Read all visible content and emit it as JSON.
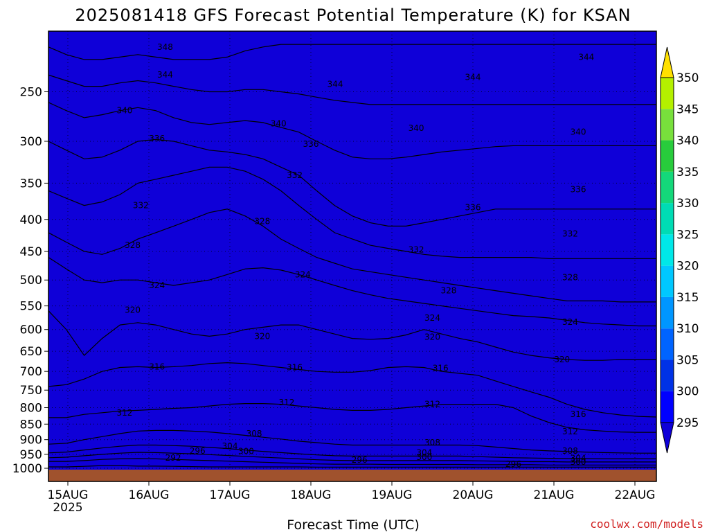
{
  "chart_data": {
    "type": "heatmap",
    "title": "2025081418 GFS Forecast Potential Temperature (K) for KSAN",
    "xlabel": "Forecast Time (UTC)",
    "ylabel": "",
    "credit": "coolwx.com/models",
    "units": "K",
    "x_start_date": "15AUG",
    "x_year_label": "2025",
    "x_ticks": [
      "15AUG",
      "16AUG",
      "17AUG",
      "18AUG",
      "19AUG",
      "20AUG",
      "21AUG",
      "22AUG"
    ],
    "y_ticks": [
      250,
      300,
      350,
      400,
      450,
      500,
      550,
      600,
      650,
      700,
      750,
      800,
      850,
      900,
      950,
      1000
    ],
    "y_range": [
      200,
      1000
    ],
    "y_scale": "log (pressure, hPa), inverted",
    "colorbar_levels": [
      295,
      300,
      305,
      310,
      315,
      320,
      325,
      330,
      335,
      340,
      345,
      350
    ],
    "colorbar_colors": [
      "#0f00d8",
      "#0000ff",
      "#0032e6",
      "#0064ff",
      "#0096ff",
      "#00c8ff",
      "#00e8e8",
      "#00dcb4",
      "#14d87a",
      "#28cc3c",
      "#78e03c",
      "#b4f000",
      "#f0ff00",
      "#ffe000"
    ],
    "grid": true,
    "contour_lines": [
      {
        "value": 292,
        "p": [
          995,
          995,
          993,
          990,
          990,
          992,
          992,
          993,
          994,
          995,
          995,
          995,
          995,
          995,
          995,
          996,
          996,
          996,
          996,
          996,
          996,
          996,
          996,
          996,
          996,
          996,
          996,
          996,
          996,
          996,
          996,
          996,
          996,
          996,
          996
        ]
      },
      {
        "value": 296,
        "p": [
          975,
          975,
          972,
          968,
          966,
          965,
          966,
          968,
          970,
          972,
          974,
          976,
          978,
          980,
          982,
          984,
          985,
          985,
          985,
          986,
          986,
          986,
          986,
          986,
          987,
          987,
          987,
          987,
          988,
          988,
          988,
          988,
          988,
          988,
          988
        ]
      },
      {
        "value": 300,
        "p": [
          962,
          960,
          955,
          950,
          946,
          943,
          944,
          946,
          948,
          951,
          954,
          957,
          960,
          963,
          966,
          969,
          971,
          972,
          972,
          972,
          972,
          972,
          972,
          972,
          973,
          974,
          975,
          976,
          976,
          977,
          977,
          977,
          977,
          977,
          977
        ]
      },
      {
        "value": 304,
        "p": [
          945,
          942,
          935,
          928,
          922,
          918,
          918,
          920,
          922,
          926,
          930,
          935,
          940,
          944,
          948,
          952,
          955,
          956,
          956,
          956,
          956,
          956,
          956,
          956,
          958,
          960,
          962,
          963,
          964,
          965,
          965,
          966,
          966,
          966,
          966
        ]
      },
      {
        "value": 308,
        "p": [
          915,
          912,
          900,
          890,
          880,
          872,
          870,
          870,
          872,
          875,
          880,
          886,
          892,
          898,
          905,
          910,
          915,
          918,
          918,
          918,
          918,
          918,
          918,
          918,
          920,
          925,
          930,
          935,
          938,
          940,
          942,
          944,
          945,
          946,
          946
        ]
      },
      {
        "value": 312,
        "p": [
          830,
          830,
          820,
          815,
          810,
          808,
          805,
          802,
          800,
          795,
          790,
          788,
          788,
          790,
          795,
          800,
          805,
          808,
          808,
          805,
          800,
          795,
          790,
          790,
          790,
          790,
          800,
          825,
          845,
          860,
          868,
          872,
          875,
          876,
          876
        ]
      },
      {
        "value": 316,
        "p": [
          740,
          735,
          720,
          700,
          690,
          688,
          690,
          688,
          685,
          680,
          678,
          680,
          685,
          690,
          695,
          700,
          702,
          702,
          698,
          690,
          688,
          690,
          700,
          705,
          710,
          725,
          740,
          755,
          770,
          790,
          805,
          815,
          822,
          826,
          828
        ]
      },
      {
        "value": 320,
        "p": [
          560,
          600,
          660,
          620,
          590,
          585,
          590,
          600,
          610,
          615,
          610,
          600,
          595,
          590,
          590,
          600,
          610,
          620,
          622,
          620,
          612,
          600,
          610,
          620,
          628,
          640,
          652,
          660,
          666,
          670,
          672,
          672,
          670,
          670,
          670
        ]
      },
      {
        "value": 324,
        "p": [
          460,
          480,
          500,
          505,
          500,
          500,
          505,
          510,
          505,
          500,
          490,
          480,
          478,
          482,
          490,
          500,
          510,
          520,
          528,
          535,
          540,
          545,
          550,
          555,
          560,
          565,
          570,
          572,
          575,
          580,
          585,
          588,
          590,
          592,
          592
        ]
      },
      {
        "value": 328,
        "p": [
          420,
          435,
          450,
          455,
          445,
          430,
          420,
          410,
          400,
          390,
          385,
          395,
          410,
          430,
          445,
          460,
          470,
          480,
          485,
          490,
          495,
          500,
          505,
          510,
          515,
          520,
          525,
          530,
          535,
          540,
          540,
          540,
          542,
          542,
          542
        ]
      },
      {
        "value": 332,
        "p": [
          360,
          370,
          380,
          375,
          365,
          350,
          345,
          340,
          335,
          330,
          330,
          335,
          345,
          360,
          380,
          400,
          420,
          430,
          440,
          445,
          450,
          455,
          458,
          460,
          460,
          460,
          460,
          460,
          462,
          462,
          462,
          462,
          462,
          462,
          462
        ]
      },
      {
        "value": 336,
        "p": [
          300,
          310,
          320,
          318,
          310,
          300,
          298,
          300,
          305,
          310,
          312,
          315,
          320,
          330,
          340,
          360,
          380,
          395,
          405,
          410,
          410,
          405,
          400,
          395,
          390,
          385,
          385,
          385,
          385,
          385,
          385,
          385,
          385,
          385,
          385
        ]
      },
      {
        "value": 340,
        "p": [
          260,
          268,
          275,
          272,
          268,
          265,
          268,
          275,
          280,
          282,
          280,
          278,
          280,
          285,
          290,
          300,
          310,
          318,
          320,
          320,
          318,
          315,
          312,
          310,
          308,
          306,
          305,
          305,
          305,
          305,
          305,
          305,
          305,
          305,
          305
        ]
      },
      {
        "value": 344,
        "p": [
          235,
          240,
          245,
          245,
          242,
          240,
          242,
          245,
          248,
          250,
          250,
          248,
          248,
          250,
          252,
          255,
          258,
          260,
          262,
          262,
          262,
          262,
          262,
          262,
          262,
          262,
          262,
          262,
          262,
          262,
          262,
          262,
          262,
          262,
          262
        ]
      },
      {
        "value": 348,
        "p": [
          212,
          218,
          222,
          222,
          220,
          218,
          220,
          222,
          222,
          222,
          220,
          215,
          212,
          210,
          210,
          210,
          210,
          210,
          210,
          210,
          210,
          210,
          210,
          210,
          210,
          210,
          210,
          210,
          210,
          210,
          210,
          210,
          210,
          210,
          210
        ]
      }
    ],
    "contour_labels": [
      {
        "text": "348",
        "day": 1.2,
        "p": 212
      },
      {
        "text": "344",
        "day": 1.2,
        "p": 235
      },
      {
        "text": "344",
        "day": 3.3,
        "p": 243
      },
      {
        "text": "344",
        "day": 5.0,
        "p": 237
      },
      {
        "text": "344",
        "day": 6.4,
        "p": 220
      },
      {
        "text": "340",
        "day": 0.7,
        "p": 268
      },
      {
        "text": "340",
        "day": 2.6,
        "p": 281
      },
      {
        "text": "340",
        "day": 4.3,
        "p": 286
      },
      {
        "text": "340",
        "day": 6.3,
        "p": 290
      },
      {
        "text": "336",
        "day": 1.1,
        "p": 297
      },
      {
        "text": "336",
        "day": 3.0,
        "p": 303
      },
      {
        "text": "336",
        "day": 5.0,
        "p": 383
      },
      {
        "text": "336",
        "day": 6.3,
        "p": 358
      },
      {
        "text": "332",
        "day": 0.9,
        "p": 380
      },
      {
        "text": "332",
        "day": 2.8,
        "p": 340
      },
      {
        "text": "332",
        "day": 4.3,
        "p": 447
      },
      {
        "text": "332",
        "day": 6.2,
        "p": 422
      },
      {
        "text": "328",
        "day": 0.8,
        "p": 440
      },
      {
        "text": "328",
        "day": 2.4,
        "p": 403
      },
      {
        "text": "328",
        "day": 4.7,
        "p": 520
      },
      {
        "text": "328",
        "day": 6.2,
        "p": 495
      },
      {
        "text": "324",
        "day": 1.1,
        "p": 510
      },
      {
        "text": "324",
        "day": 2.9,
        "p": 490
      },
      {
        "text": "324",
        "day": 4.5,
        "p": 575
      },
      {
        "text": "324",
        "day": 6.2,
        "p": 584
      },
      {
        "text": "320",
        "day": 0.8,
        "p": 558
      },
      {
        "text": "320",
        "day": 2.4,
        "p": 615
      },
      {
        "text": "320",
        "day": 4.5,
        "p": 617
      },
      {
        "text": "320",
        "day": 6.1,
        "p": 670
      },
      {
        "text": "316",
        "day": 1.1,
        "p": 688
      },
      {
        "text": "316",
        "day": 2.8,
        "p": 690
      },
      {
        "text": "316",
        "day": 4.6,
        "p": 692
      },
      {
        "text": "316",
        "day": 6.3,
        "p": 820
      },
      {
        "text": "312",
        "day": 0.7,
        "p": 815
      },
      {
        "text": "312",
        "day": 2.7,
        "p": 785
      },
      {
        "text": "312",
        "day": 4.5,
        "p": 790
      },
      {
        "text": "312",
        "day": 6.2,
        "p": 873
      },
      {
        "text": "308",
        "day": 2.3,
        "p": 880
      },
      {
        "text": "308",
        "day": 4.5,
        "p": 910
      },
      {
        "text": "308",
        "day": 6.2,
        "p": 938
      },
      {
        "text": "304",
        "day": 2.0,
        "p": 922
      },
      {
        "text": "304",
        "day": 4.4,
        "p": 944
      },
      {
        "text": "304",
        "day": 6.3,
        "p": 964
      },
      {
        "text": "300",
        "day": 2.2,
        "p": 940
      },
      {
        "text": "300",
        "day": 4.4,
        "p": 960
      },
      {
        "text": "300",
        "day": 6.3,
        "p": 977
      },
      {
        "text": "296",
        "day": 1.6,
        "p": 938
      },
      {
        "text": "296",
        "day": 3.6,
        "p": 970
      },
      {
        "text": "296",
        "day": 5.5,
        "p": 985
      },
      {
        "text": "292",
        "day": 1.3,
        "p": 962
      }
    ]
  }
}
